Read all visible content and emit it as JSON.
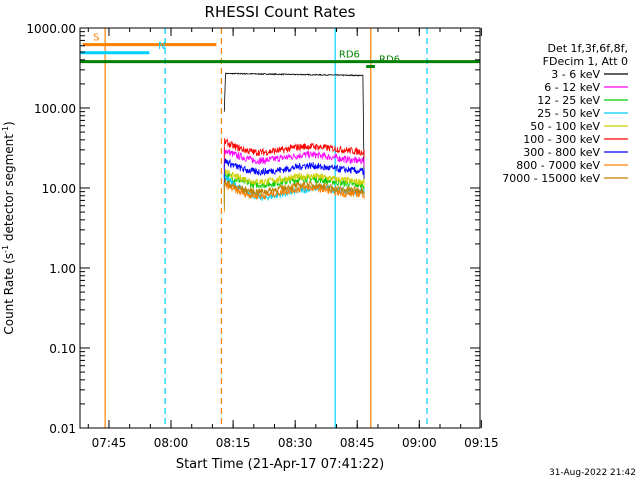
{
  "chart_data": {
    "type": "line",
    "title": "RHESSI Count Rates",
    "xlabel": "Start Time (21-Apr-17 07:41:22)",
    "ylabel_main": "Count Rate (s",
    "ylabel_sup": "-1",
    "ylabel_mid": " detector segment",
    "ylabel_end": ")",
    "xlim_minutes": [
      -3.37,
      93.3
    ],
    "xticks": [
      {
        "label": "07:45",
        "minutes": 3.63
      },
      {
        "label": "08:00",
        "minutes": 18.63
      },
      {
        "label": "08:15",
        "minutes": 33.63
      },
      {
        "label": "08:30",
        "minutes": 48.63
      },
      {
        "label": "08:45",
        "minutes": 63.63
      },
      {
        "label": "09:00",
        "minutes": 78.63
      },
      {
        "label": "09:15",
        "minutes": 93.63
      }
    ],
    "yscale": "log",
    "ylim": [
      0.01,
      1000
    ],
    "yticks": [
      {
        "label": "0.01",
        "value": 0.01
      },
      {
        "label": "0.10",
        "value": 0.1
      },
      {
        "label": "1.00",
        "value": 1
      },
      {
        "label": "10.00",
        "value": 10
      },
      {
        "label": "100.00",
        "value": 100
      },
      {
        "label": "1000.00",
        "value": 1000
      }
    ],
    "legend": {
      "placement": "right",
      "header": [
        "Det 1f,3f,6f,8f,",
        "FDecim 1, Att 0"
      ],
      "entries": [
        {
          "label": "3 - 6 keV",
          "color": "#000000"
        },
        {
          "label": "6 - 12 keV",
          "color": "#ff00ff"
        },
        {
          "label": "12 - 25 keV",
          "color": "#00cc00"
        },
        {
          "label": "25 - 50 keV",
          "color": "#00d0ff"
        },
        {
          "label": "50 - 100 keV",
          "color": "#d0d000"
        },
        {
          "label": "100 - 300 keV",
          "color": "#ff0000"
        },
        {
          "label": "300 - 800 keV",
          "color": "#0000ff"
        },
        {
          "label": "800 - 7000 keV",
          "color": "#ff8000"
        },
        {
          "label": "7000 - 15000 keV",
          "color": "#c08000"
        }
      ]
    },
    "series": [
      {
        "name": "3 - 6 keV",
        "color": "#000000",
        "x_range": [
          31.5,
          65.3
        ],
        "y_start": 90,
        "y_level": 270,
        "y_end": 255
      },
      {
        "name": "6 - 12 keV",
        "color": "#ff00ff",
        "x_range": [
          31.5,
          65.3
        ],
        "profile": [
          30,
          26,
          24,
          22,
          22,
          23,
          24,
          25,
          26,
          26,
          25,
          24,
          23,
          22,
          22
        ]
      },
      {
        "name": "12 - 25 keV",
        "color": "#00cc00",
        "x_range": [
          31.5,
          65.3
        ],
        "profile": [
          15,
          13,
          12,
          11,
          11,
          11.5,
          12,
          12.5,
          13,
          13,
          12.5,
          12,
          11.5,
          11,
          11
        ]
      },
      {
        "name": "25 - 50 keV",
        "color": "#00d0ff",
        "x_range": [
          31.5,
          65.3
        ],
        "profile": [
          14,
          11,
          9,
          8,
          7.5,
          8,
          8.5,
          9,
          9.5,
          10,
          10,
          9.5,
          9,
          9,
          9
        ]
      },
      {
        "name": "50 - 100 keV",
        "color": "#d0d000",
        "x_range": [
          31.5,
          65.3
        ],
        "profile": [
          16,
          14,
          13,
          12,
          12,
          12.5,
          13,
          13.5,
          14,
          14,
          13.5,
          13,
          12.5,
          12,
          12
        ]
      },
      {
        "name": "100 - 300 keV",
        "color": "#ff0000",
        "x_range": [
          31.5,
          65.3
        ],
        "profile": [
          38,
          33,
          30,
          28,
          28,
          29,
          30,
          32,
          33,
          33,
          32,
          31,
          30,
          29,
          28
        ]
      },
      {
        "name": "300 - 800 keV",
        "color": "#0000ff",
        "x_range": [
          31.5,
          65.3
        ],
        "profile": [
          22,
          19,
          17,
          16,
          16,
          16.5,
          17,
          18,
          19,
          19,
          18,
          17.5,
          17,
          16.5,
          16
        ]
      },
      {
        "name": "800 - 7000 keV",
        "color": "#ff8000",
        "x_range": [
          31.5,
          65.3
        ],
        "profile": [
          11,
          9.5,
          8.5,
          8,
          8,
          8.5,
          9,
          9.5,
          10,
          10,
          9.5,
          9,
          8.5,
          8.5,
          8.5
        ]
      },
      {
        "name": "7000 - 15000 keV",
        "color": "#c08000",
        "x_range": [
          31.5,
          65.3
        ],
        "profile": [
          12,
          10.5,
          9.5,
          9,
          9,
          9.5,
          10,
          10.5,
          11,
          11,
          10.5,
          10,
          9.5,
          9.5,
          9.5
        ]
      }
    ],
    "flags": [
      {
        "label": "S",
        "color": "#ff8000",
        "x_range": [
          -2.7,
          29.6
        ],
        "y": 620,
        "label_x": -0.2
      },
      {
        "label": "N",
        "color": "#00d0ff",
        "x_range": [
          -3.4,
          13.4
        ],
        "y": 490,
        "label_x": 15.5
      },
      {
        "label": "RD6",
        "color": "#008000",
        "x_range": [
          -3.4,
          93.3
        ],
        "y": 380,
        "label_x": 59.2
      },
      {
        "label": "RD6",
        "color": "#008000",
        "x_range": [
          65.8,
          67.9
        ],
        "y": 330,
        "label_x": 68.9
      }
    ],
    "vlines": [
      {
        "color": "#ff8000",
        "x": 2.7,
        "style": "solid"
      },
      {
        "color": "#00d0ff",
        "x": 17.2,
        "style": "dashed"
      },
      {
        "color": "#ff8000",
        "x": 30.8,
        "style": "dashed"
      },
      {
        "color": "#00d0ff",
        "x": 58.3,
        "style": "solid"
      },
      {
        "color": "#ff8000",
        "x": 66.9,
        "style": "solid"
      },
      {
        "color": "#00d0ff",
        "x": 80.5,
        "style": "dashed"
      }
    ],
    "footer_date": "31-Aug-2022 21:42"
  }
}
